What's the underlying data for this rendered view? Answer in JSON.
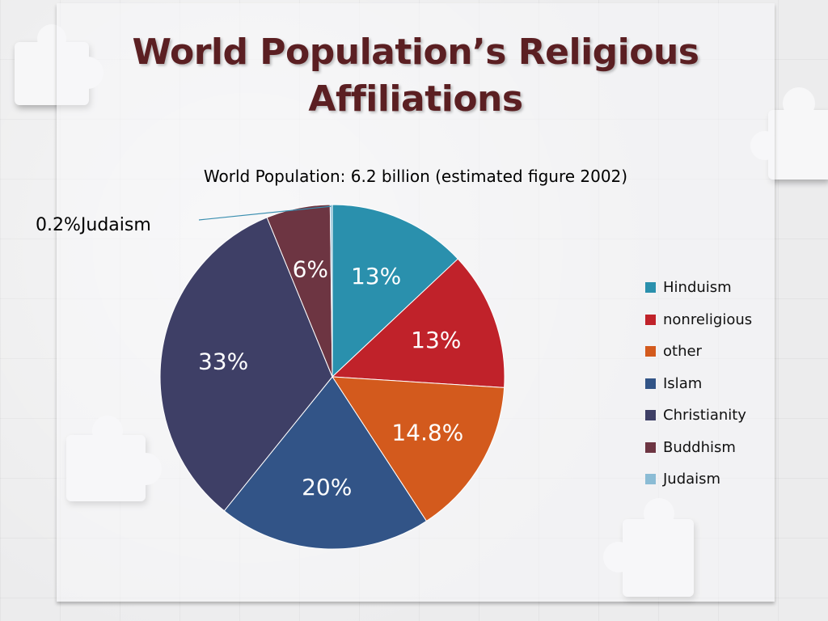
{
  "slide": {
    "title": "World Population’s Religious Affiliations"
  },
  "chart_data": {
    "type": "pie",
    "title": "World Population: 6.2 billion (estimated figure 2002)",
    "categories": [
      "Hinduism",
      "nonreligious",
      "other",
      "Islam",
      "Christianity",
      "Buddhism",
      "Judaism"
    ],
    "values": [
      13,
      13,
      14.8,
      20,
      33,
      6,
      0.2
    ],
    "data_labels": [
      "13%",
      "13%",
      "14.8%",
      "20%",
      "33%",
      "6%",
      "0.2%Judaism"
    ],
    "colors": [
      "#2a90ad",
      "#c0222a",
      "#d35a1d",
      "#325487",
      "#3e3f66",
      "#6d3542",
      "#8bbcd5"
    ],
    "label_color": "#ffffff",
    "legend": "right",
    "start_angle_deg": 0,
    "direction": "clockwise"
  }
}
